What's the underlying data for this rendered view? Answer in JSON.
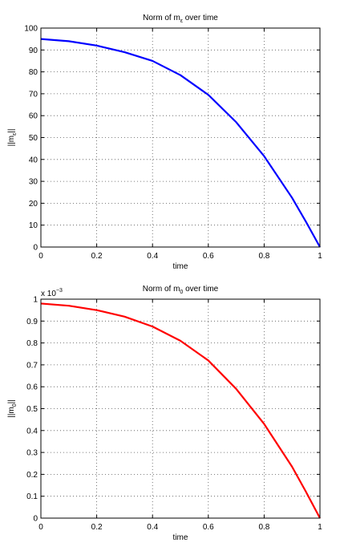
{
  "chart_data": [
    {
      "type": "line",
      "title": "Norm of m",
      "title_sub": "ε",
      "title_suffix": " over time",
      "xlabel": "time",
      "ylabel": "||m",
      "ylabel_sub": "ε",
      "ylabel_suffix": "||",
      "xlim": [
        0,
        1
      ],
      "ylim": [
        0,
        100
      ],
      "xticks": [
        0,
        0.2,
        0.4,
        0.6,
        0.8,
        1
      ],
      "xtick_labels": [
        "0",
        "0.2",
        "0.4",
        "0.6",
        "0.8",
        "1"
      ],
      "yticks": [
        0,
        10,
        20,
        30,
        40,
        50,
        60,
        70,
        80,
        90,
        100
      ],
      "ytick_labels": [
        "0",
        "10",
        "20",
        "30",
        "40",
        "50",
        "60",
        "70",
        "80",
        "90",
        "100"
      ],
      "exponent_label": "",
      "grid": true,
      "color": "#0000ff",
      "series": [
        {
          "x": [
            0,
            0.1,
            0.2,
            0.3,
            0.4,
            0.5,
            0.6,
            0.7,
            0.8,
            0.9,
            0.95,
            1.0
          ],
          "y": [
            95,
            94,
            92,
            89,
            85,
            78.5,
            69.5,
            57,
            41.5,
            22.5,
            11.5,
            0
          ]
        }
      ]
    },
    {
      "type": "line",
      "title": "Norm of m",
      "title_sub": "0",
      "title_suffix": " over time",
      "xlabel": "time",
      "ylabel": "||m",
      "ylabel_sub": "0",
      "ylabel_suffix": "||",
      "xlim": [
        0,
        1
      ],
      "ylim": [
        0,
        1
      ],
      "xticks": [
        0,
        0.2,
        0.4,
        0.6,
        0.8,
        1
      ],
      "xtick_labels": [
        "0",
        "0.2",
        "0.4",
        "0.6",
        "0.8",
        "1"
      ],
      "yticks": [
        0,
        0.1,
        0.2,
        0.3,
        0.4,
        0.5,
        0.6,
        0.7,
        0.8,
        0.9,
        1
      ],
      "ytick_labels": [
        "0",
        "0.1",
        "0.2",
        "0.3",
        "0.4",
        "0.5",
        "0.6",
        "0.7",
        "0.8",
        "0.9",
        "1"
      ],
      "exponent_label": "x 10",
      "exponent_power": "−3",
      "grid": true,
      "color": "#ff0000",
      "series": [
        {
          "x": [
            0,
            0.1,
            0.2,
            0.3,
            0.4,
            0.5,
            0.6,
            0.7,
            0.8,
            0.9,
            0.95,
            1.0
          ],
          "y": [
            0.98,
            0.97,
            0.95,
            0.92,
            0.875,
            0.81,
            0.72,
            0.59,
            0.43,
            0.235,
            0.12,
            0
          ]
        }
      ]
    }
  ]
}
